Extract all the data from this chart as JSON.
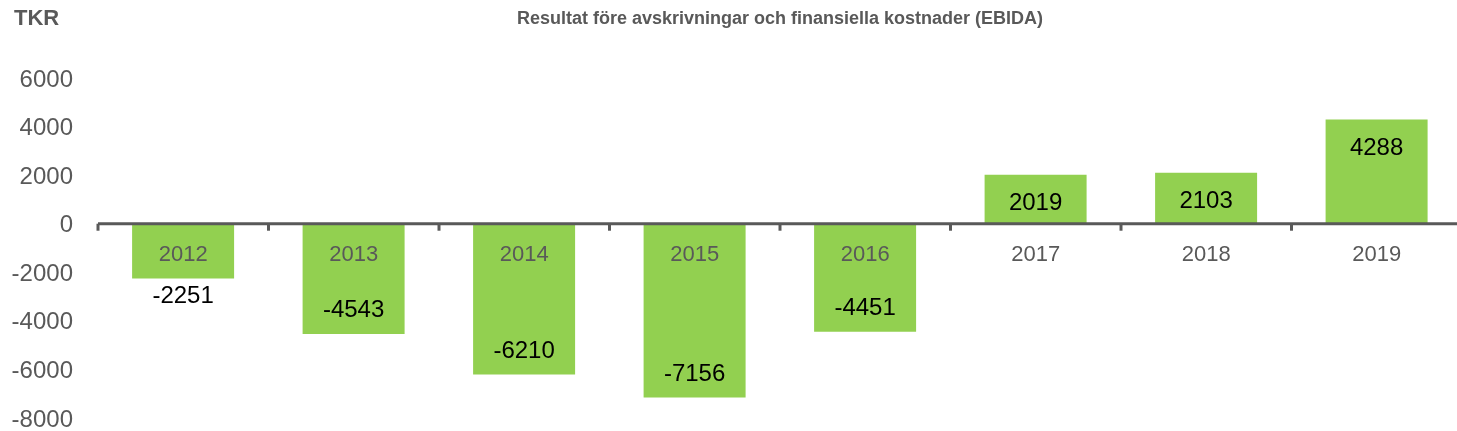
{
  "chart_data": {
    "type": "bar",
    "title": "Resultat före avskrivningar och finansiella kostnader (EBIDA)",
    "ylabel": "TKR",
    "categories": [
      "2012",
      "2013",
      "2014",
      "2015",
      "2016",
      "2017",
      "2018",
      "2019"
    ],
    "values": [
      -2251,
      -4543,
      -6210,
      -7156,
      -4451,
      2019,
      2103,
      4288
    ],
    "color": "#92d050",
    "ylim": [
      -8000,
      6000
    ],
    "yticks": [
      -8000,
      -6000,
      -4000,
      -2000,
      0,
      2000,
      4000,
      6000
    ],
    "data_labels": true
  }
}
